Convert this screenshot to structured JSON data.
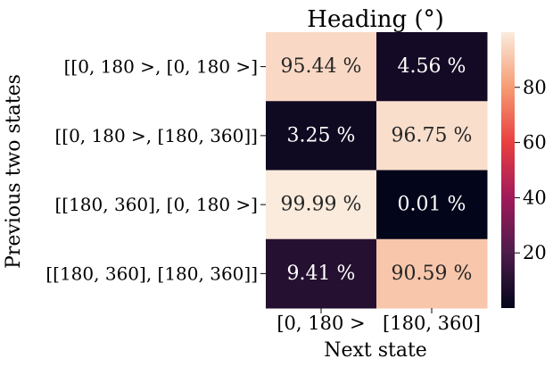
{
  "chart_data": {
    "type": "heatmap",
    "title": "Heading (°)",
    "xlabel": "Next state",
    "ylabel": "Previous two states",
    "x_categories": [
      "[0, 180 >",
      "[180, 360]"
    ],
    "y_categories": [
      "[[0, 180 >, [0, 180 >]",
      "[[0, 180 >, [180, 360]]",
      "[[180, 360], [0, 180 >]",
      "[[180, 360], [180, 360]]"
    ],
    "values": [
      [
        95.44,
        4.56
      ],
      [
        3.25,
        96.75
      ],
      [
        99.99,
        0.01
      ],
      [
        9.41,
        90.59
      ]
    ],
    "cell_labels": [
      [
        "95.44 %",
        "4.56 %"
      ],
      [
        "3.25 %",
        "96.75 %"
      ],
      [
        "99.99 %",
        "0.01 %"
      ],
      [
        "9.41 %",
        "90.59 %"
      ]
    ],
    "colorbar": {
      "min": 0.01,
      "max": 99.99,
      "ticks": [
        20,
        40,
        60,
        80
      ],
      "colormap": "rocket",
      "colormap_stops": [
        "#03051a",
        "#4c1d4b",
        "#a11a5b",
        "#e83f3f",
        "#f69c73",
        "#faebdd"
      ]
    },
    "grid": false,
    "legend": "colorbar-right"
  }
}
